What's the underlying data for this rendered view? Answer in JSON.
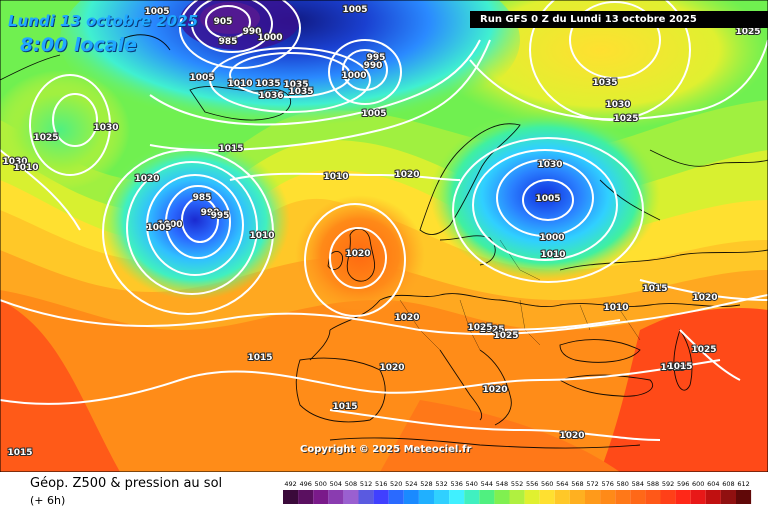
{
  "title": {
    "date": "Lundi 13 octobre 2025",
    "time": "8:00 locale"
  },
  "run_info": "Run GFS 0 Z du Lundi 13 octobre 2025",
  "copyright": "Copyright © 2025 Meteociel.fr",
  "legend": {
    "title": "Géop. Z500 & pression au sol",
    "subtitle": "(+ 6h)",
    "ticks": [
      "492",
      "496",
      "500",
      "504",
      "508",
      "512",
      "516",
      "520",
      "524",
      "528",
      "532",
      "536",
      "540",
      "544",
      "548",
      "552",
      "556",
      "560",
      "564",
      "568",
      "572",
      "576",
      "580",
      "584",
      "588",
      "592",
      "596",
      "600",
      "604",
      "608",
      "612"
    ],
    "colors": [
      "#3a0a3a",
      "#5a1060",
      "#7a1a8a",
      "#8a3cb0",
      "#9a60d0",
      "#5a5ae0",
      "#4040ff",
      "#2a6aff",
      "#1a8aff",
      "#20b0ff",
      "#30d0ff",
      "#40f0ff",
      "#40f0c0",
      "#50f080",
      "#80f050",
      "#b0f040",
      "#e0f030",
      "#ffe030",
      "#ffc828",
      "#ffb020",
      "#ff9a1a",
      "#ff8a18",
      "#ff7818",
      "#ff6818",
      "#ff5818",
      "#ff4018",
      "#ff2818",
      "#e81818",
      "#c01010",
      "#901010",
      "#600808"
    ]
  },
  "pressure_labels": [
    "1005",
    "905",
    "985",
    "990",
    "1000",
    "1005",
    "1010",
    "1035",
    "1036",
    "1035",
    "1035",
    "995",
    "990",
    "1000",
    "1005",
    "1005",
    "1030",
    "1025",
    "1035",
    "1030",
    "1025",
    "1025",
    "1030",
    "1010",
    "1010",
    "1015",
    "1020",
    "985",
    "990",
    "995",
    "1000",
    "1005",
    "1010",
    "1020",
    "1020",
    "1030",
    "1005",
    "1000",
    "1010",
    "1015",
    "1020",
    "1010",
    "1020",
    "1025",
    "1025",
    "1025",
    "1015",
    "1020",
    "1015",
    "1015",
    "1020",
    "1015",
    "1020",
    "1015",
    "1025"
  ]
}
